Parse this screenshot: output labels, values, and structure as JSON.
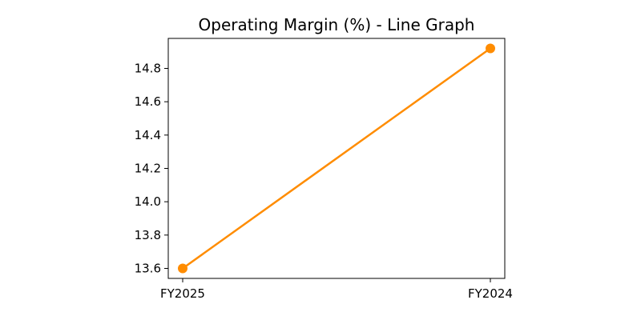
{
  "chart_data": {
    "type": "line",
    "title": "Operating Margin (%) - Line Graph",
    "xlabel": "",
    "ylabel": "",
    "categories": [
      "FY2025",
      "FY2024"
    ],
    "series": [
      {
        "values": [
          13.6,
          14.92
        ],
        "color": "#ff8c00"
      }
    ],
    "ylim": [
      13.54,
      14.98
    ],
    "yticks": [
      "13.6",
      "13.8",
      "14.0",
      "14.2",
      "14.4",
      "14.6",
      "14.8"
    ],
    "grid": false,
    "legend": "none"
  }
}
